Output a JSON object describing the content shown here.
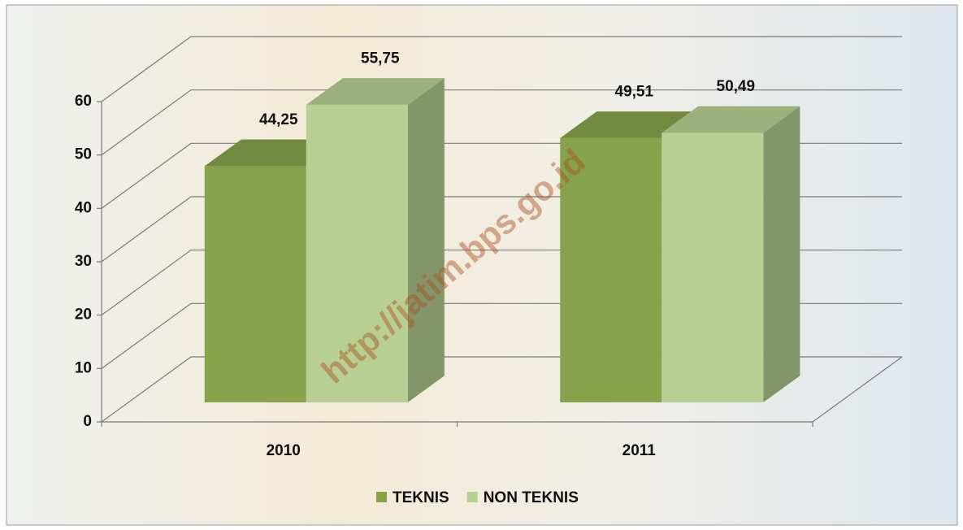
{
  "chart_data": {
    "type": "bar3d",
    "categories": [
      "2010",
      "2011"
    ],
    "series": [
      {
        "name": "TEKNIS",
        "color": "#86a24a",
        "values": [
          44.25,
          49.51
        ],
        "value_labels": [
          "44,25",
          "49,51"
        ]
      },
      {
        "name": "NON TEKNIS",
        "color": "#b7cf92",
        "values": [
          55.75,
          50.49
        ],
        "value_labels": [
          "55,75",
          "50,49"
        ]
      }
    ],
    "ylim": [
      0,
      60
    ],
    "yticks": [
      0,
      10,
      20,
      30,
      40,
      50,
      60
    ],
    "grid": true,
    "legend": "bottom",
    "watermark": "http://jatim.bps.go.id"
  }
}
